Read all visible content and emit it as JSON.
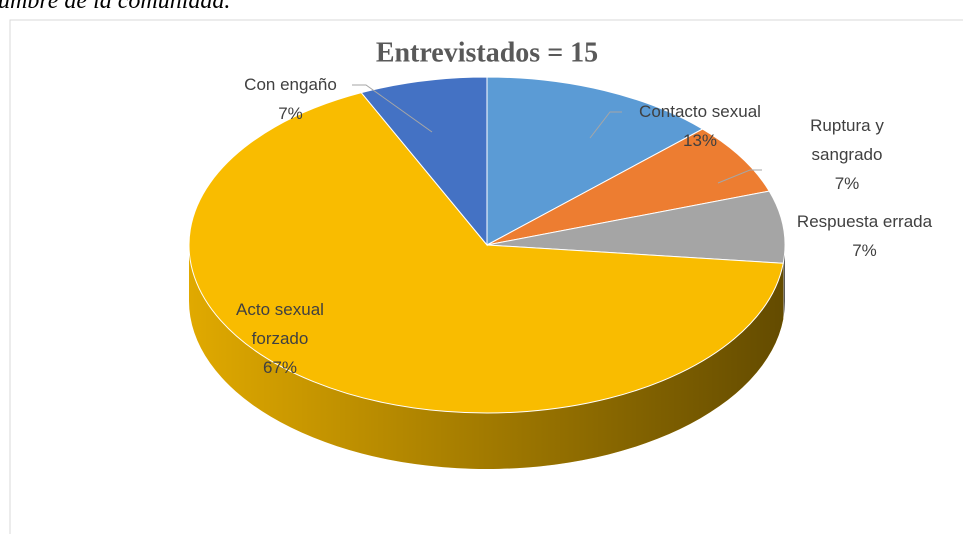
{
  "caption": "umbre de la comunidad.",
  "chart_data": {
    "type": "pie",
    "title": "Entrevistados = 15",
    "categories": [
      "Contacto sexual",
      "Ruptura y sangrado",
      "Respuesta errada",
      "Acto sexual forzado",
      "Con engaño"
    ],
    "values": [
      13,
      7,
      7,
      67,
      7
    ],
    "value_labels": [
      "13%",
      "7%",
      "7%",
      "67%",
      "7%"
    ],
    "colors": [
      "#5b9bd5",
      "#ed7d31",
      "#a5a5a5",
      "#f9bc00",
      "#4472c4"
    ],
    "three_d": true
  }
}
